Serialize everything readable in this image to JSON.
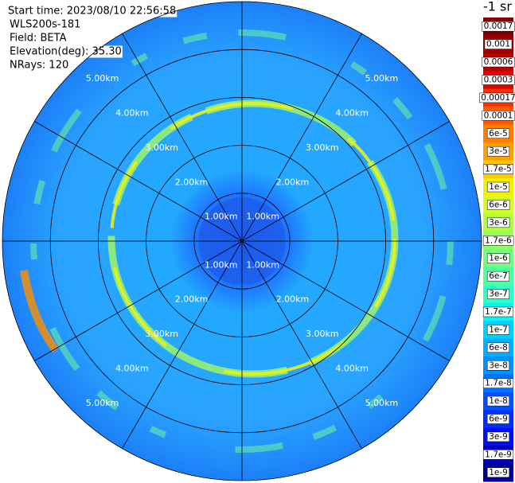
{
  "chart_data": {
    "type": "polar",
    "info": [
      "Start time: 2023/08/10 22:56:58",
      "WLS200s-181",
      "Field: BETA",
      "Elevation(deg): 35.30",
      "NRays: 120"
    ],
    "rlim": [
      0,
      5
    ],
    "rticks": [
      {
        "value": 1,
        "label": "1.00km"
      },
      {
        "value": 2,
        "label": "2.00km"
      },
      {
        "value": 3,
        "label": "3.00km"
      },
      {
        "value": 4,
        "label": "4.00km"
      },
      {
        "value": 5,
        "label": "5.00km"
      }
    ],
    "colorbar": {
      "title": "-1 sr",
      "ticks": [
        0.0017,
        0.001,
        0.0006,
        0.0003,
        0.00017,
        0.0001,
        {
          "value": 6e-05,
          "label": "6e-5"
        },
        {
          "value": 3e-05,
          "label": "3e-5"
        },
        {
          "value": 1.7e-05,
          "label": "1.7e-5"
        },
        {
          "value": 1e-05,
          "label": "1e-5"
        },
        {
          "value": 6e-06,
          "label": "6e-6"
        },
        {
          "value": 3e-06,
          "label": "3e-6"
        },
        {
          "value": 1.7e-06,
          "label": "1.7e-6"
        },
        {
          "value": 1e-06,
          "label": "1e-6"
        },
        {
          "value": 6e-07,
          "label": "6e-7"
        },
        {
          "value": 3e-07,
          "label": "3e-7"
        },
        {
          "value": 1.7e-07,
          "label": "1.7e-7"
        },
        {
          "value": 1e-07,
          "label": "1e-7"
        },
        {
          "value": 6e-08,
          "label": "6e-8"
        },
        {
          "value": 3e-08,
          "label": "3e-8"
        },
        {
          "value": 1.7e-08,
          "label": "1.7e-8"
        },
        {
          "value": 1e-08,
          "label": "1e-8"
        },
        {
          "value": 6e-09,
          "label": "6e-9"
        },
        {
          "value": 3e-09,
          "label": "3e-9"
        },
        {
          "value": 1.7e-09,
          "label": "1.7e-9"
        },
        {
          "value": 1e-09,
          "label": "1e-9"
        }
      ],
      "colors": [
        "#7f0000",
        "#9a0000",
        "#c00000",
        "#e80000",
        "#ff3000",
        "#ff5a00",
        "#ff8000",
        "#ffa000",
        "#ffc800",
        "#f0f000",
        "#d4ff20",
        "#b0ff40",
        "#90ff60",
        "#70ff80",
        "#50ffa0",
        "#30ffc8",
        "#10f0f0",
        "#00d0ff",
        "#00b0ff",
        "#0090ff",
        "#0070ff",
        "#0050ff",
        "#0030ff",
        "#0010f0",
        "#0000c0",
        "#00008f"
      ]
    }
  }
}
